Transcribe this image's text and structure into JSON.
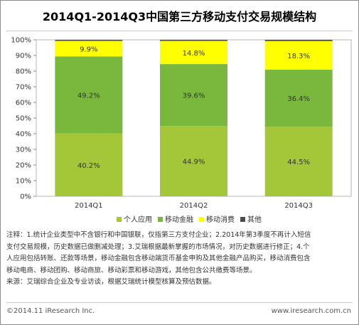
{
  "title": "2014Q1-2014Q3中国第三方移动支付交易规模结构",
  "chart_data": {
    "type": "bar",
    "stacked": true,
    "categories": [
      "2014Q1",
      "2014Q2",
      "2014Q3"
    ],
    "series": [
      {
        "name": "个人应用",
        "values": [
          40.2,
          44.9,
          44.5
        ],
        "labels": [
          "40.2%",
          "44.9%",
          "44.5%"
        ],
        "color": "#a4c739"
      },
      {
        "name": "移动金融",
        "values": [
          49.2,
          39.6,
          36.4
        ],
        "labels": [
          "49.2%",
          "39.6%",
          "36.4%"
        ],
        "color": "#79b83c"
      },
      {
        "name": "移动消费",
        "values": [
          9.9,
          14.8,
          18.3
        ],
        "labels": [
          "9.9%",
          "14.8%",
          "18.3%"
        ],
        "color": "#ffff00"
      },
      {
        "name": "其他",
        "values": [
          0.7,
          0.7,
          0.8
        ],
        "labels": [
          "",
          "",
          ""
        ],
        "color": "#4d4d4d"
      }
    ],
    "yticks": [
      "0%",
      "10%",
      "20%",
      "30%",
      "40%",
      "50%",
      "60%",
      "70%",
      "80%",
      "90%",
      "100%"
    ],
    "ylim": [
      0,
      100
    ],
    "grid": false,
    "legend_position": "bottom"
  },
  "note_lines": [
    "注释：1.统计企业类型中不含银行和中国银联，仅指第三方支付企业；2.2014年第3季度不再计入短信",
    "支付交易规模，历史数据已做删减处理；3.艾瑞根据最新掌握的市场情况，对历史数据进行修正；4.个",
    "人应用包括转账、还款等场景，移动金融包含移动端货币基金申购及其他金融产品购买，移动消费包含",
    "移动电商、移动团购、移动商旅、移动彩票和移动游戏，其他包含公共缴费等场景。",
    "来源：艾瑞综合企业及专业访谈，根据艾瑞统计模型核算及预估数据。"
  ],
  "footer": {
    "copyright": "©2014.11 iResearch Inc.",
    "website": "www.iresearch.com.cn"
  }
}
